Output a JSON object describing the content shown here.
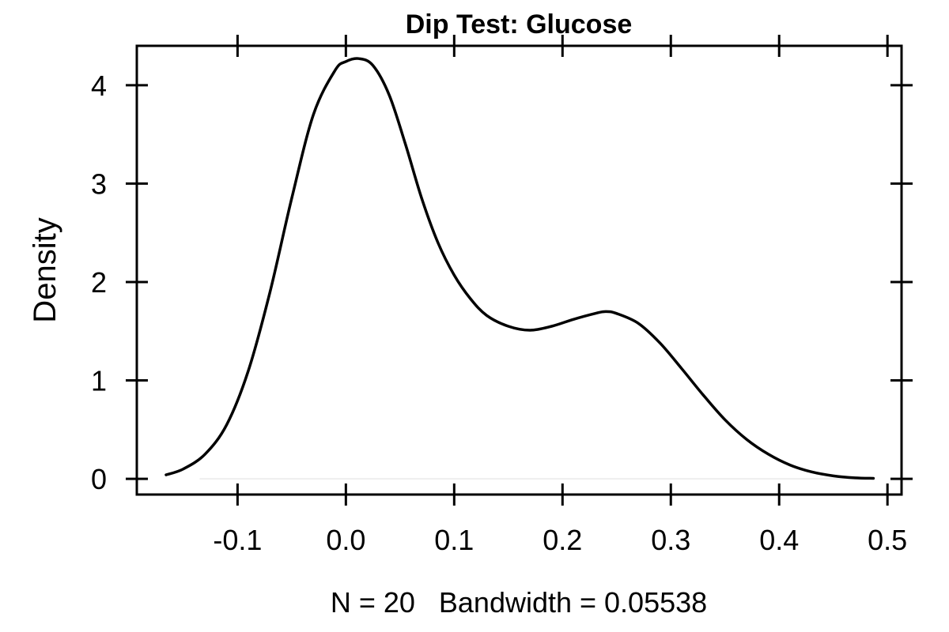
{
  "chart_data": {
    "type": "line",
    "title": "Dip Test: Glucose",
    "xlabel": "N = 20   Bandwidth = 0.05538",
    "ylabel": "Density",
    "xlim": [
      -0.193,
      0.513
    ],
    "ylim": [
      -0.16,
      4.4
    ],
    "x_ticks": [
      -0.1,
      0.0,
      0.1,
      0.2,
      0.3,
      0.4,
      0.5
    ],
    "x_tick_labels": [
      "-0.1",
      "0.0",
      "0.1",
      "0.2",
      "0.3",
      "0.4",
      "0.5"
    ],
    "y_ticks": [
      0,
      1,
      2,
      3,
      4
    ],
    "y_tick_labels": [
      "0",
      "1",
      "2",
      "3",
      "4"
    ],
    "grid": false,
    "baseline_y": 0,
    "series": [
      {
        "color": "#000000",
        "x": [
          -0.166,
          -0.15,
          -0.13,
          -0.11,
          -0.09,
          -0.07,
          -0.05,
          -0.03,
          -0.01,
          0.0,
          0.012,
          0.025,
          0.04,
          0.055,
          0.07,
          0.085,
          0.1,
          0.115,
          0.13,
          0.15,
          0.17,
          0.19,
          0.21,
          0.23,
          0.24,
          0.25,
          0.27,
          0.29,
          0.31,
          0.33,
          0.35,
          0.37,
          0.39,
          0.41,
          0.43,
          0.45,
          0.47,
          0.487
        ],
        "y": [
          0.04,
          0.1,
          0.25,
          0.55,
          1.1,
          1.9,
          2.85,
          3.7,
          4.15,
          4.24,
          4.27,
          4.2,
          3.9,
          3.4,
          2.85,
          2.4,
          2.07,
          1.83,
          1.66,
          1.55,
          1.51,
          1.55,
          1.62,
          1.68,
          1.7,
          1.68,
          1.58,
          1.38,
          1.12,
          0.85,
          0.6,
          0.4,
          0.25,
          0.14,
          0.07,
          0.03,
          0.01,
          0.005
        ]
      }
    ]
  }
}
